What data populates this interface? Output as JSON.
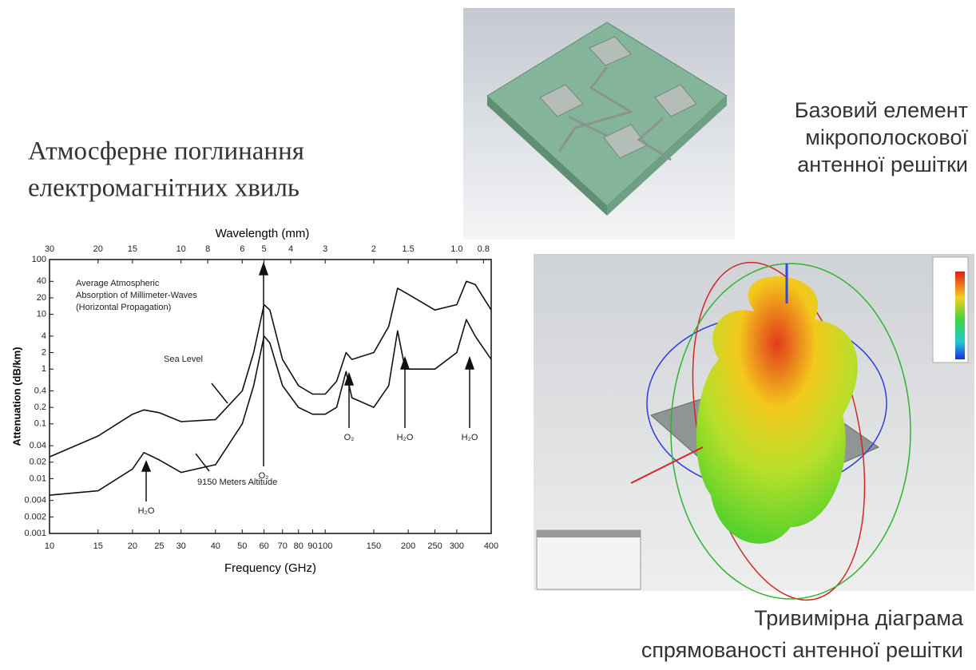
{
  "left_title": {
    "lines": [
      "Атмосферне поглинання",
      "електромагнітних хвиль"
    ]
  },
  "antenna_caption": {
    "lines": [
      "Базовий елемент",
      "мікрополоскової",
      "антенної решітки"
    ]
  },
  "pattern_caption": {
    "lines": [
      "Тривимірна діаграма",
      "спрямованості антенної решітки"
    ]
  },
  "chart_data": {
    "type": "line",
    "x_label": "Frequency (GHz)",
    "y_label": "Attenuation (dB/km)",
    "x2_label": "Wavelength (mm)",
    "xlog": true,
    "ylog": true,
    "xlim": [
      10,
      400
    ],
    "ylim": [
      0.001,
      100
    ],
    "xticks": [
      10,
      15,
      20,
      25,
      30,
      40,
      50,
      60,
      70,
      80,
      90,
      100,
      150,
      200,
      250,
      300,
      400
    ],
    "yticks": [
      100,
      40,
      20,
      10,
      4,
      2,
      1,
      0.4,
      0.2,
      0.1,
      0.04,
      0.02,
      0.01,
      0.004,
      0.002,
      0.001
    ],
    "x2lim": [
      30,
      0.75
    ],
    "x2ticks": [
      30,
      20,
      15,
      10,
      8,
      6,
      5,
      4,
      3,
      2,
      1.5,
      {
        "value": 1,
        "label": "1.0"
      },
      0.8
    ],
    "annotations": [
      "Average Atmospheric",
      "Absorption of Millimeter-Waves",
      "(Horizontal Propagation)",
      "Sea Level",
      "9150 Meters Altitude",
      "H₂O",
      "O₂",
      "O₂",
      "H₂O",
      "H₂O"
    ],
    "x": [
      10,
      15,
      20,
      22,
      25,
      30,
      40,
      50,
      55,
      60,
      63,
      70,
      80,
      90,
      100,
      110,
      119,
      125,
      150,
      170,
      183,
      195,
      250,
      300,
      325,
      350,
      400
    ],
    "series": [
      {
        "name": "Sea Level",
        "color": "#111111",
        "values": [
          0.025,
          0.06,
          0.15,
          0.18,
          0.16,
          0.11,
          0.12,
          0.4,
          2,
          15,
          12,
          1.5,
          0.5,
          0.35,
          0.35,
          0.6,
          2,
          1.5,
          2,
          6,
          30,
          25,
          12,
          15,
          40,
          35,
          12
        ]
      },
      {
        "name": "9150 Meters Altitude",
        "color": "#111111",
        "values": [
          0.005,
          0.006,
          0.015,
          0.03,
          0.022,
          0.013,
          0.018,
          0.1,
          0.5,
          4,
          3,
          0.5,
          0.2,
          0.15,
          0.15,
          0.2,
          0.9,
          0.3,
          0.2,
          0.5,
          5,
          1,
          1,
          2,
          8,
          4,
          1.5
        ]
      }
    ]
  }
}
